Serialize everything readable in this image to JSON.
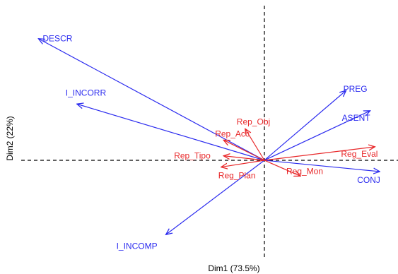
{
  "chart_data": {
    "type": "biplot",
    "xlabel": "Dim1 (73.5%)",
    "ylabel": "Dim2 (22%)",
    "xlim": [
      -1.0,
      0.52
    ],
    "ylim": [
      -0.45,
      0.58
    ],
    "zero_lines": "dashed",
    "grid": false,
    "origin": [
      0,
      0
    ],
    "series": [
      {
        "color": "#2b2bef",
        "vectors": [
          {
            "label": "DESCR",
            "x": -0.94,
            "y": 0.54
          },
          {
            "label": "I_INCORR",
            "x": -0.78,
            "y": 0.25
          },
          {
            "label": "PREG",
            "x": 0.34,
            "y": 0.31
          },
          {
            "label": "ASENT",
            "x": 0.44,
            "y": 0.22
          },
          {
            "label": "CONJ",
            "x": 0.48,
            "y": -0.05
          },
          {
            "label": "I_INCOMP",
            "x": -0.41,
            "y": -0.33
          }
        ]
      },
      {
        "color": "#e8282a",
        "vectors": [
          {
            "label": "Rep_Obj",
            "x": -0.08,
            "y": 0.14
          },
          {
            "label": "Rep_Acc",
            "x": -0.17,
            "y": 0.09
          },
          {
            "label": "Rep_Tipo",
            "x": -0.17,
            "y": 0.02
          },
          {
            "label": "Reg_Plan",
            "x": -0.18,
            "y": -0.03
          },
          {
            "label": "Reg_Eval",
            "x": 0.46,
            "y": 0.06
          },
          {
            "label": "Reg_Mon",
            "x": 0.15,
            "y": -0.07
          }
        ]
      }
    ]
  }
}
